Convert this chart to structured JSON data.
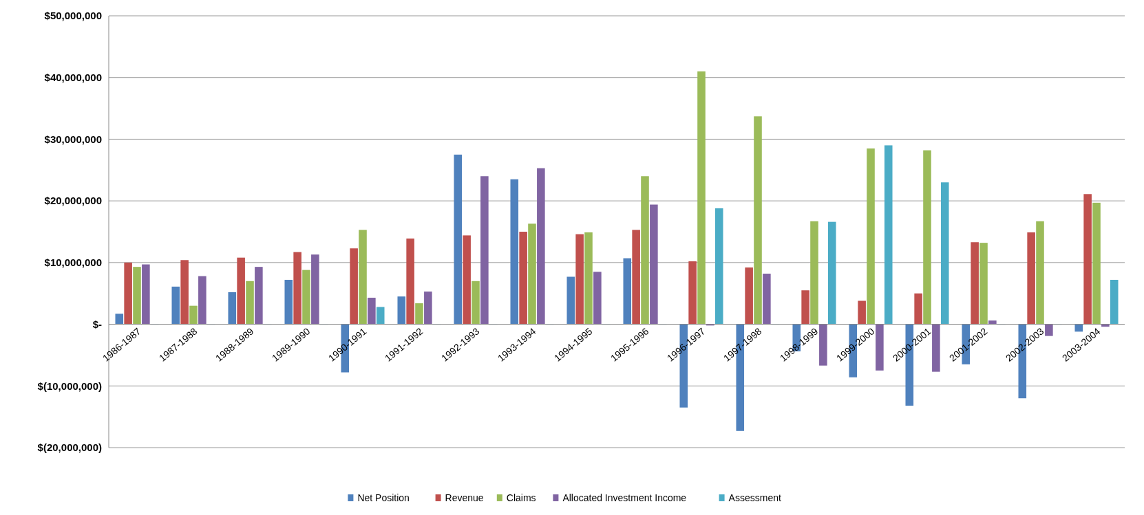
{
  "chart_data": {
    "type": "bar",
    "categories": [
      "1986-1987",
      "1987-1988",
      "1988-1989",
      "1989-1990",
      "1990-1991",
      "1991-1992",
      "1992-1993",
      "1993-1994",
      "1994-1995",
      "1995-1996",
      "1996-1997",
      "1997-1998",
      "1998-1999",
      "1999-2000",
      "2000-2001",
      "2001-2002",
      "2002-2003",
      "2003-2004"
    ],
    "series": [
      {
        "name": "Net Position",
        "color": "#4f81bd",
        "values": [
          1700000,
          6100000,
          5200000,
          7200000,
          -7800000,
          4500000,
          27500000,
          23500000,
          7700000,
          10700000,
          -13500000,
          -17300000,
          -4400000,
          -8600000,
          -13200000,
          -6500000,
          -12000000,
          -1200000
        ]
      },
      {
        "name": "Revenue",
        "color": "#c0504d",
        "values": [
          10000000,
          10400000,
          10800000,
          11700000,
          12300000,
          13900000,
          14400000,
          15000000,
          14600000,
          15300000,
          10200000,
          9200000,
          5500000,
          3800000,
          5000000,
          13300000,
          14900000,
          21100000
        ]
      },
      {
        "name": "Claims",
        "color": "#9bbb59",
        "values": [
          9300000,
          3000000,
          7000000,
          8800000,
          15300000,
          3400000,
          7000000,
          16300000,
          14900000,
          24000000,
          41000000,
          33700000,
          16700000,
          28500000,
          28200000,
          13200000,
          16700000,
          19700000
        ]
      },
      {
        "name": "Allocated Investment Income",
        "color": "#8064a2",
        "values": [
          9700000,
          7800000,
          9300000,
          11300000,
          4300000,
          5300000,
          24000000,
          25300000,
          8500000,
          19400000,
          -200000,
          8200000,
          -6700000,
          -7500000,
          -7700000,
          600000,
          -1900000,
          -400000
        ]
      },
      {
        "name": "Assessment",
        "color": "#4bacc6",
        "values": [
          0,
          0,
          0,
          0,
          2800000,
          0,
          0,
          0,
          0,
          0,
          18800000,
          0,
          16600000,
          29000000,
          23000000,
          0,
          0,
          7200000
        ]
      }
    ],
    "ylim": [
      -20000000,
      50000000
    ],
    "yticks": [
      {
        "value": -20000000,
        "label": "$(20,000,000)"
      },
      {
        "value": -10000000,
        "label": "$(10,000,000)"
      },
      {
        "value": 0,
        "label": "$-"
      },
      {
        "value": 10000000,
        "label": "$10,000,000"
      },
      {
        "value": 20000000,
        "label": "$20,000,000"
      },
      {
        "value": 30000000,
        "label": "$30,000,000"
      },
      {
        "value": 40000000,
        "label": "$40,000,000"
      },
      {
        "value": 50000000,
        "label": "$50,000,000"
      }
    ],
    "grid": true,
    "legend": "bottom"
  }
}
